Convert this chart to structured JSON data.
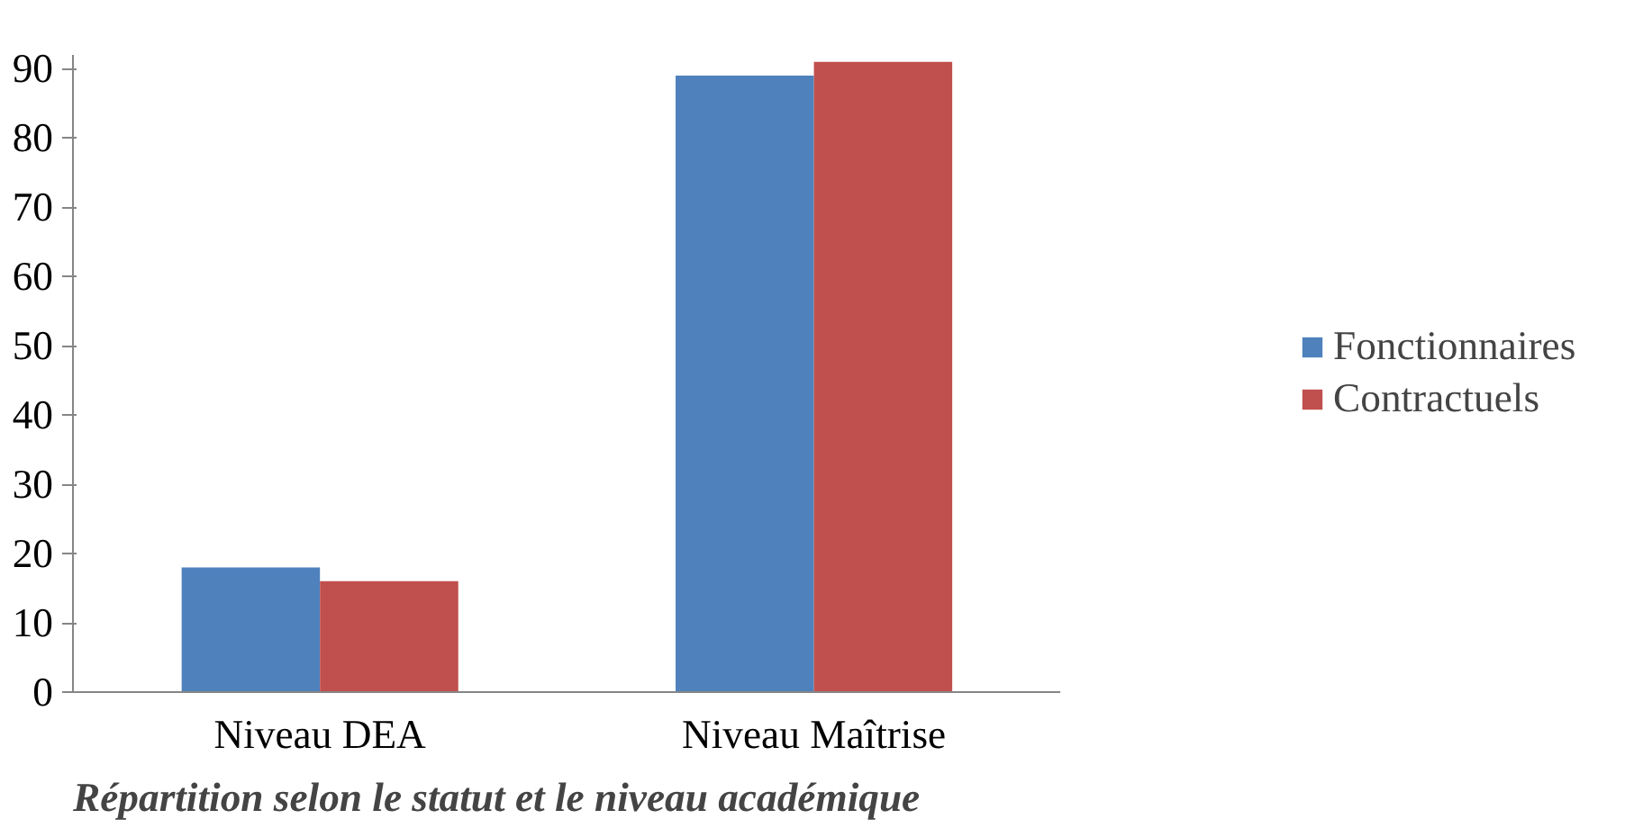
{
  "chart_data": {
    "type": "bar",
    "categories": [
      "Niveau DEA",
      "Niveau Maîtrise"
    ],
    "series": [
      {
        "name": "Fonctionnaires",
        "color": "#4f81bd",
        "values": [
          18,
          89
        ]
      },
      {
        "name": "Contractuels",
        "color": "#c0504d",
        "values": [
          16,
          91
        ]
      }
    ],
    "ylim": [
      0,
      92
    ],
    "yticks": [
      0,
      10,
      20,
      30,
      40,
      50,
      60,
      70,
      80,
      90
    ],
    "grid": false,
    "legend": "right",
    "annotations": [
      "Répartition selon le statut et le niveau académique"
    ]
  }
}
